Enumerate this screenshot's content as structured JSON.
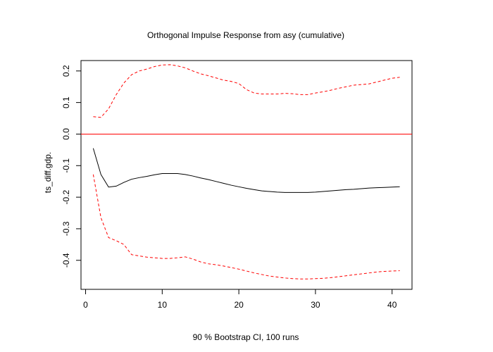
{
  "chart_data": {
    "type": "line",
    "title": "Orthogonal Impulse Response from asy (cumulative)",
    "xlabel": "90 % Bootstrap CI,  100 runs",
    "ylabel": "ts_diff.gdp.",
    "xlim": [
      -0.6,
      42.6
    ],
    "ylim": [
      -0.492,
      0.233
    ],
    "x_ticks": [
      0,
      10,
      20,
      30,
      40
    ],
    "x_tick_labels": [
      "0",
      "10",
      "20",
      "30",
      "40"
    ],
    "y_ticks": [
      -0.4,
      -0.3,
      -0.2,
      -0.1,
      0.0,
      0.1,
      0.2
    ],
    "y_tick_labels": [
      "-0.4",
      "-0.3",
      "-0.2",
      "-0.1",
      "0.0",
      "0.1",
      "0.2"
    ],
    "grid": false,
    "x": [
      1,
      2,
      3,
      4,
      5,
      6,
      7,
      8,
      9,
      10,
      11,
      12,
      13,
      14,
      15,
      16,
      17,
      18,
      19,
      20,
      21,
      22,
      23,
      24,
      25,
      26,
      27,
      28,
      29,
      30,
      31,
      32,
      33,
      34,
      35,
      36,
      37,
      38,
      39,
      40,
      41
    ],
    "series": [
      {
        "style": "solid",
        "color": "#000000",
        "values": [
          -0.045,
          -0.128,
          -0.168,
          -0.165,
          -0.153,
          -0.143,
          -0.138,
          -0.134,
          -0.129,
          -0.125,
          -0.125,
          -0.125,
          -0.128,
          -0.133,
          -0.139,
          -0.144,
          -0.15,
          -0.156,
          -0.162,
          -0.167,
          -0.172,
          -0.176,
          -0.18,
          -0.182,
          -0.184,
          -0.185,
          -0.185,
          -0.185,
          -0.185,
          -0.184,
          -0.182,
          -0.18,
          -0.178,
          -0.176,
          -0.175,
          -0.173,
          -0.171,
          -0.17,
          -0.169,
          -0.168,
          -0.167
        ]
      },
      {
        "style": "dashed",
        "color": "#ff0000",
        "values": [
          0.055,
          0.053,
          0.08,
          0.125,
          0.162,
          0.188,
          0.2,
          0.206,
          0.214,
          0.219,
          0.22,
          0.216,
          0.21,
          0.2,
          0.191,
          0.185,
          0.178,
          0.171,
          0.167,
          0.16,
          0.141,
          0.13,
          0.127,
          0.127,
          0.127,
          0.129,
          0.128,
          0.125,
          0.125,
          0.13,
          0.134,
          0.139,
          0.145,
          0.15,
          0.155,
          0.157,
          0.159,
          0.165,
          0.171,
          0.177,
          0.18
        ]
      },
      {
        "style": "dashed",
        "color": "#ff0000",
        "values": [
          -0.128,
          -0.265,
          -0.328,
          -0.338,
          -0.35,
          -0.382,
          -0.386,
          -0.39,
          -0.392,
          -0.394,
          -0.394,
          -0.392,
          -0.389,
          -0.396,
          -0.405,
          -0.411,
          -0.414,
          -0.418,
          -0.423,
          -0.428,
          -0.434,
          -0.44,
          -0.445,
          -0.45,
          -0.453,
          -0.456,
          -0.458,
          -0.459,
          -0.459,
          -0.458,
          -0.457,
          -0.455,
          -0.452,
          -0.449,
          -0.446,
          -0.443,
          -0.44,
          -0.437,
          -0.435,
          -0.434,
          -0.433
        ]
      }
    ],
    "reference_line": {
      "y": 0.0,
      "color": "#ff0000"
    }
  }
}
